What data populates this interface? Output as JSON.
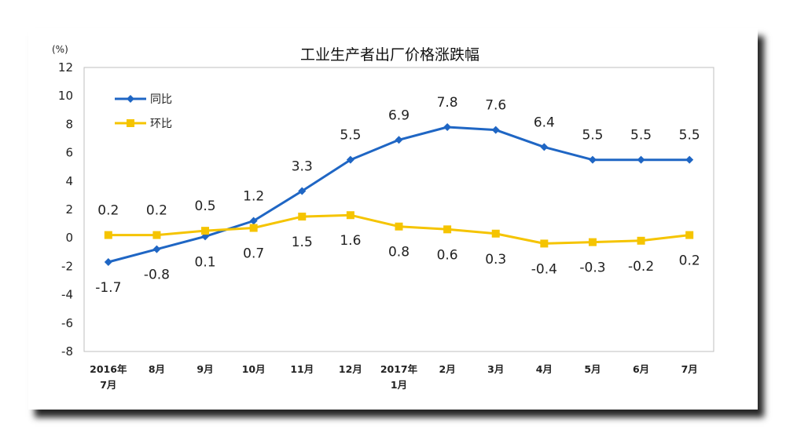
{
  "chart_data": {
    "type": "line",
    "title": "工业生产者出厂价格涨跌幅",
    "unit_label": "(%)",
    "ylim": [
      -8,
      12
    ],
    "yticks": [
      "12",
      "10",
      "8",
      "6",
      "4",
      "2",
      "0",
      "-2",
      "-4",
      "-6",
      "-8"
    ],
    "categories": [
      [
        "2016年",
        "7月"
      ],
      [
        "8月"
      ],
      [
        "9月"
      ],
      [
        "10月"
      ],
      [
        "11月"
      ],
      [
        "12月"
      ],
      [
        "2017年",
        "1月"
      ],
      [
        "2月"
      ],
      [
        "3月"
      ],
      [
        "4月"
      ],
      [
        "5月"
      ],
      [
        "6月"
      ],
      [
        "7月"
      ]
    ],
    "legend_position": "top-left",
    "grid": false,
    "series": [
      {
        "name": "同比",
        "color": "#1f66c4",
        "marker": "diamond",
        "values": [
          -1.7,
          -0.8,
          0.1,
          1.2,
          3.3,
          5.5,
          6.9,
          7.8,
          7.6,
          6.4,
          5.5,
          5.5,
          5.5
        ],
        "labels": [
          "-1.7",
          "-0.8",
          "0.1",
          "1.2",
          "3.3",
          "5.5",
          "6.9",
          "7.8",
          "7.6",
          "6.4",
          "5.5",
          "5.5",
          "5.5"
        ],
        "label_side": [
          "below",
          "below",
          "below",
          "above",
          "above",
          "above",
          "above",
          "above",
          "above",
          "above",
          "above",
          "above",
          "above"
        ]
      },
      {
        "name": "环比",
        "color": "#f5c400",
        "marker": "square",
        "values": [
          0.2,
          0.2,
          0.5,
          0.7,
          1.5,
          1.6,
          0.8,
          0.6,
          0.3,
          -0.4,
          -0.3,
          -0.2,
          0.2
        ],
        "labels": [
          "0.2",
          "0.2",
          "0.5",
          "0.7",
          "1.5",
          "1.6",
          "0.8",
          "0.6",
          "0.3",
          "-0.4",
          "-0.3",
          "-0.2",
          "0.2"
        ],
        "label_side": [
          "above",
          "above",
          "above",
          "below",
          "below",
          "below",
          "below",
          "below",
          "below",
          "below",
          "below",
          "below",
          "below"
        ]
      }
    ]
  }
}
